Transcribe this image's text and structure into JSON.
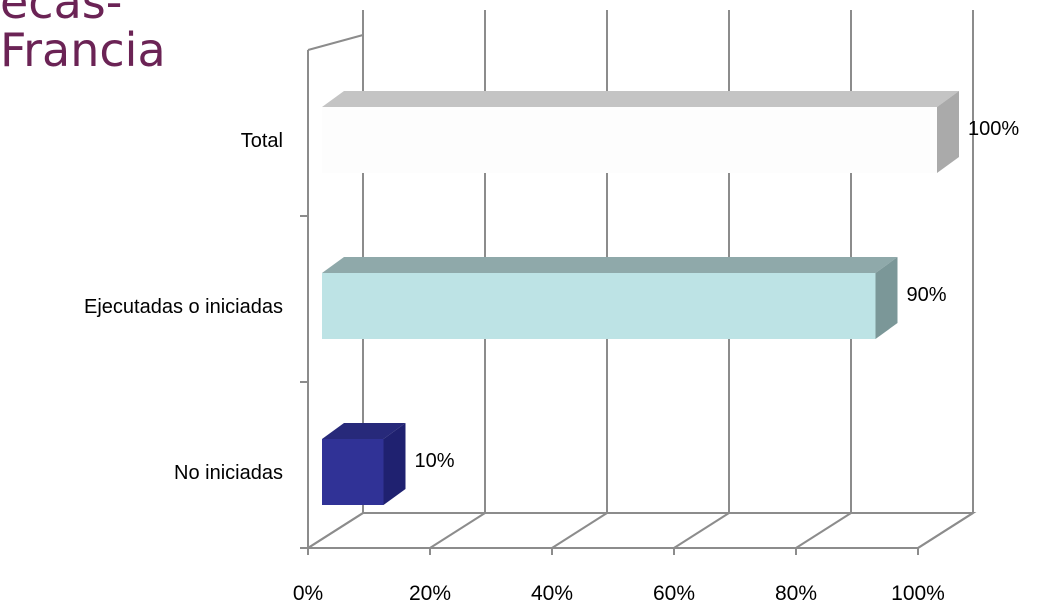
{
  "header": {
    "brand_line1": "ecas-",
    "brand_line2": "Francia"
  },
  "chart_data": {
    "type": "bar",
    "orientation": "horizontal",
    "three_d": true,
    "categories": [
      "Total",
      "Ejecutadas o iniciadas",
      "No iniciadas"
    ],
    "values": [
      100,
      90,
      10
    ],
    "data_labels": [
      "100%",
      "90%",
      "10%"
    ],
    "x_ticks": [
      "0%",
      "20%",
      "40%",
      "60%",
      "80%",
      "100%"
    ],
    "xlim": [
      0,
      100
    ],
    "grid": true,
    "colors": {
      "Total": "#fdfdfd",
      "Ejecutadas o iniciadas": "#bde3e5",
      "No iniciadas": "#303296"
    },
    "title": "",
    "xlabel": "",
    "ylabel": ""
  }
}
